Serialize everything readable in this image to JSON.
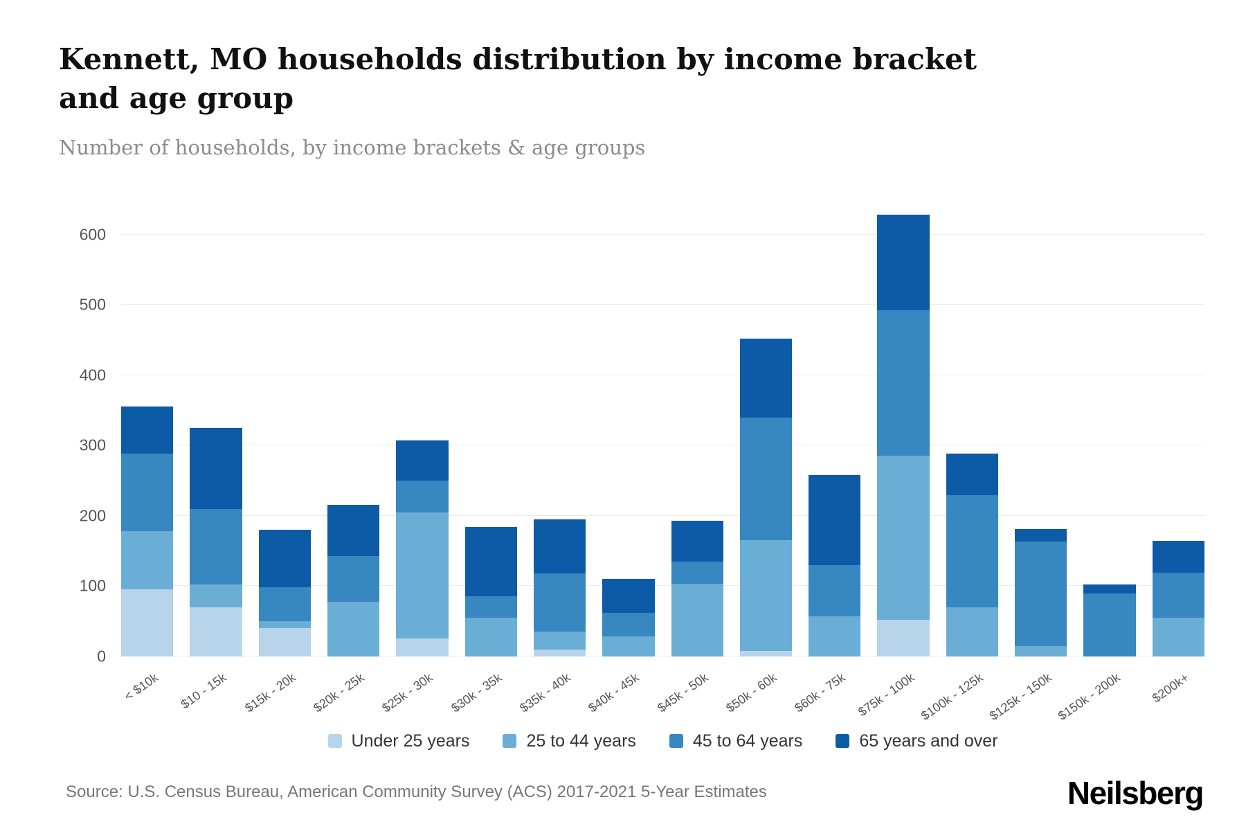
{
  "header": {
    "title": "Kennett, MO households distribution by income bracket and age group",
    "subtitle": "Number of households, by income brackets & age groups"
  },
  "footer": {
    "source": "Source: U.S. Census Bureau, American Community Survey (ACS) 2017-2021 5-Year Estimates",
    "logo": "Neilsberg"
  },
  "chart_data": {
    "type": "bar",
    "stacked": true,
    "title": "Kennett, MO households distribution by income bracket and age group",
    "xlabel": "",
    "ylabel": "Number of households",
    "categories": [
      "< $10k",
      "$10 - 15k",
      "$15k - 20k",
      "$20k - 25k",
      "$25k - 30k",
      "$30k - 35k",
      "$35k - 40k",
      "$40k - 45k",
      "$45k - 50k",
      "$50k - 60k",
      "$60k - 75k",
      "$75k - 100k",
      "$100k - 125k",
      "$125k - 150k",
      "$150k - 200k",
      "$200k+"
    ],
    "series": [
      {
        "name": "Under 25 years",
        "color": "#b7d4ea",
        "values": [
          95,
          70,
          40,
          0,
          25,
          0,
          10,
          0,
          0,
          8,
          0,
          52,
          0,
          0,
          0,
          0
        ]
      },
      {
        "name": "25 to 44 years",
        "color": "#6aaed6",
        "values": [
          83,
          32,
          10,
          78,
          180,
          55,
          25,
          28,
          103,
          157,
          57,
          233,
          70,
          15,
          0,
          55
        ]
      },
      {
        "name": "45 to 64 years",
        "color": "#3787c0",
        "values": [
          110,
          108,
          48,
          65,
          45,
          30,
          83,
          34,
          32,
          175,
          73,
          207,
          159,
          148,
          89,
          64
        ]
      },
      {
        "name": "65 years and over",
        "color": "#0d5aa7",
        "values": [
          67,
          115,
          82,
          72,
          57,
          99,
          77,
          48,
          58,
          112,
          128,
          136,
          59,
          18,
          13,
          45
        ]
      }
    ],
    "ylim": [
      0,
      650
    ],
    "yticks": [
      0,
      100,
      200,
      300,
      400,
      500,
      600
    ],
    "grid": true,
    "legend_position": "bottom"
  }
}
